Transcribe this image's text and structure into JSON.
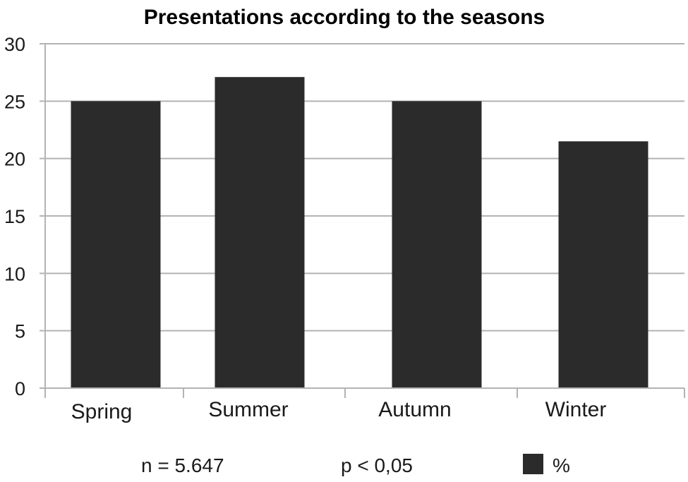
{
  "chart_data": {
    "type": "bar",
    "title": "Presentations according to the seasons",
    "categories": [
      "Spring",
      "Summer",
      "Autumn",
      "Winter"
    ],
    "series": [
      {
        "name": "%",
        "values": [
          25.0,
          27.1,
          25.0,
          21.5
        ]
      }
    ],
    "ylim": [
      0,
      30
    ],
    "yticks": [
      "0",
      "5",
      "10",
      "15",
      "20",
      "25",
      "30"
    ],
    "grid": true,
    "bar_color": "#2b2b2b",
    "grid_color": "#b3b3b3",
    "legend": {
      "position": "bottom-right",
      "label": "%"
    },
    "annotations": {
      "n": "n = 5.647",
      "p": "p < 0,05"
    }
  }
}
